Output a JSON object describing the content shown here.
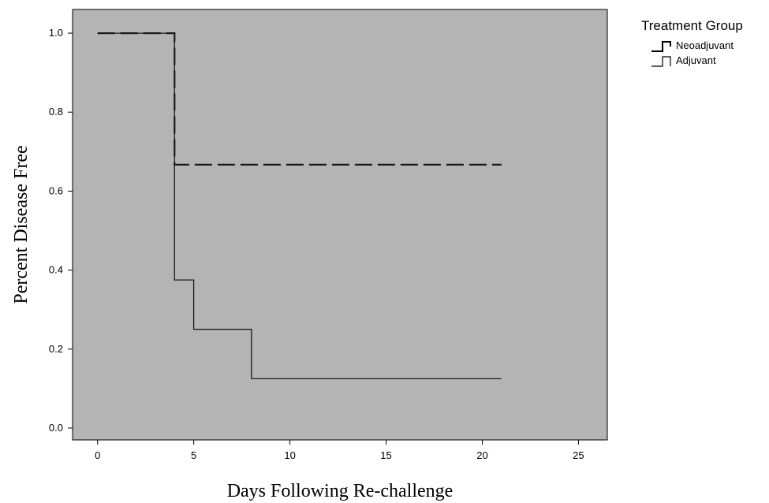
{
  "chart_data": {
    "type": "line",
    "title": "",
    "xlabel": "Days Following Re-challenge",
    "ylabel": "Percent Disease Free",
    "xlim": [
      -1.3,
      26.5
    ],
    "ylim": [
      -0.03,
      1.06
    ],
    "x_ticks": [
      0,
      5,
      10,
      15,
      20,
      25
    ],
    "x_tick_labels": [
      "0",
      "5",
      "10",
      "15",
      "20",
      "25"
    ],
    "y_ticks": [
      0.0,
      0.2,
      0.4,
      0.6,
      0.8,
      1.0
    ],
    "y_tick_labels": [
      "0.0",
      "0.2",
      "0.4",
      "0.6",
      "0.8",
      "1.0"
    ],
    "grid": false,
    "plot_background": "#b4b4b4",
    "legend": {
      "title": "Treatment Group",
      "position": "outside-top-right"
    },
    "series": [
      {
        "name": "Neoadjuvant",
        "style": "dashed",
        "step": true,
        "points": [
          [
            0,
            1.0
          ],
          [
            4,
            1.0
          ],
          [
            4,
            0.667
          ],
          [
            21,
            0.667
          ]
        ]
      },
      {
        "name": "Adjuvant",
        "style": "solid",
        "step": true,
        "points": [
          [
            0,
            1.0
          ],
          [
            4,
            1.0
          ],
          [
            4,
            0.375
          ],
          [
            5,
            0.375
          ],
          [
            5,
            0.25
          ],
          [
            8,
            0.25
          ],
          [
            8,
            0.125
          ],
          [
            21,
            0.125
          ]
        ]
      }
    ]
  }
}
